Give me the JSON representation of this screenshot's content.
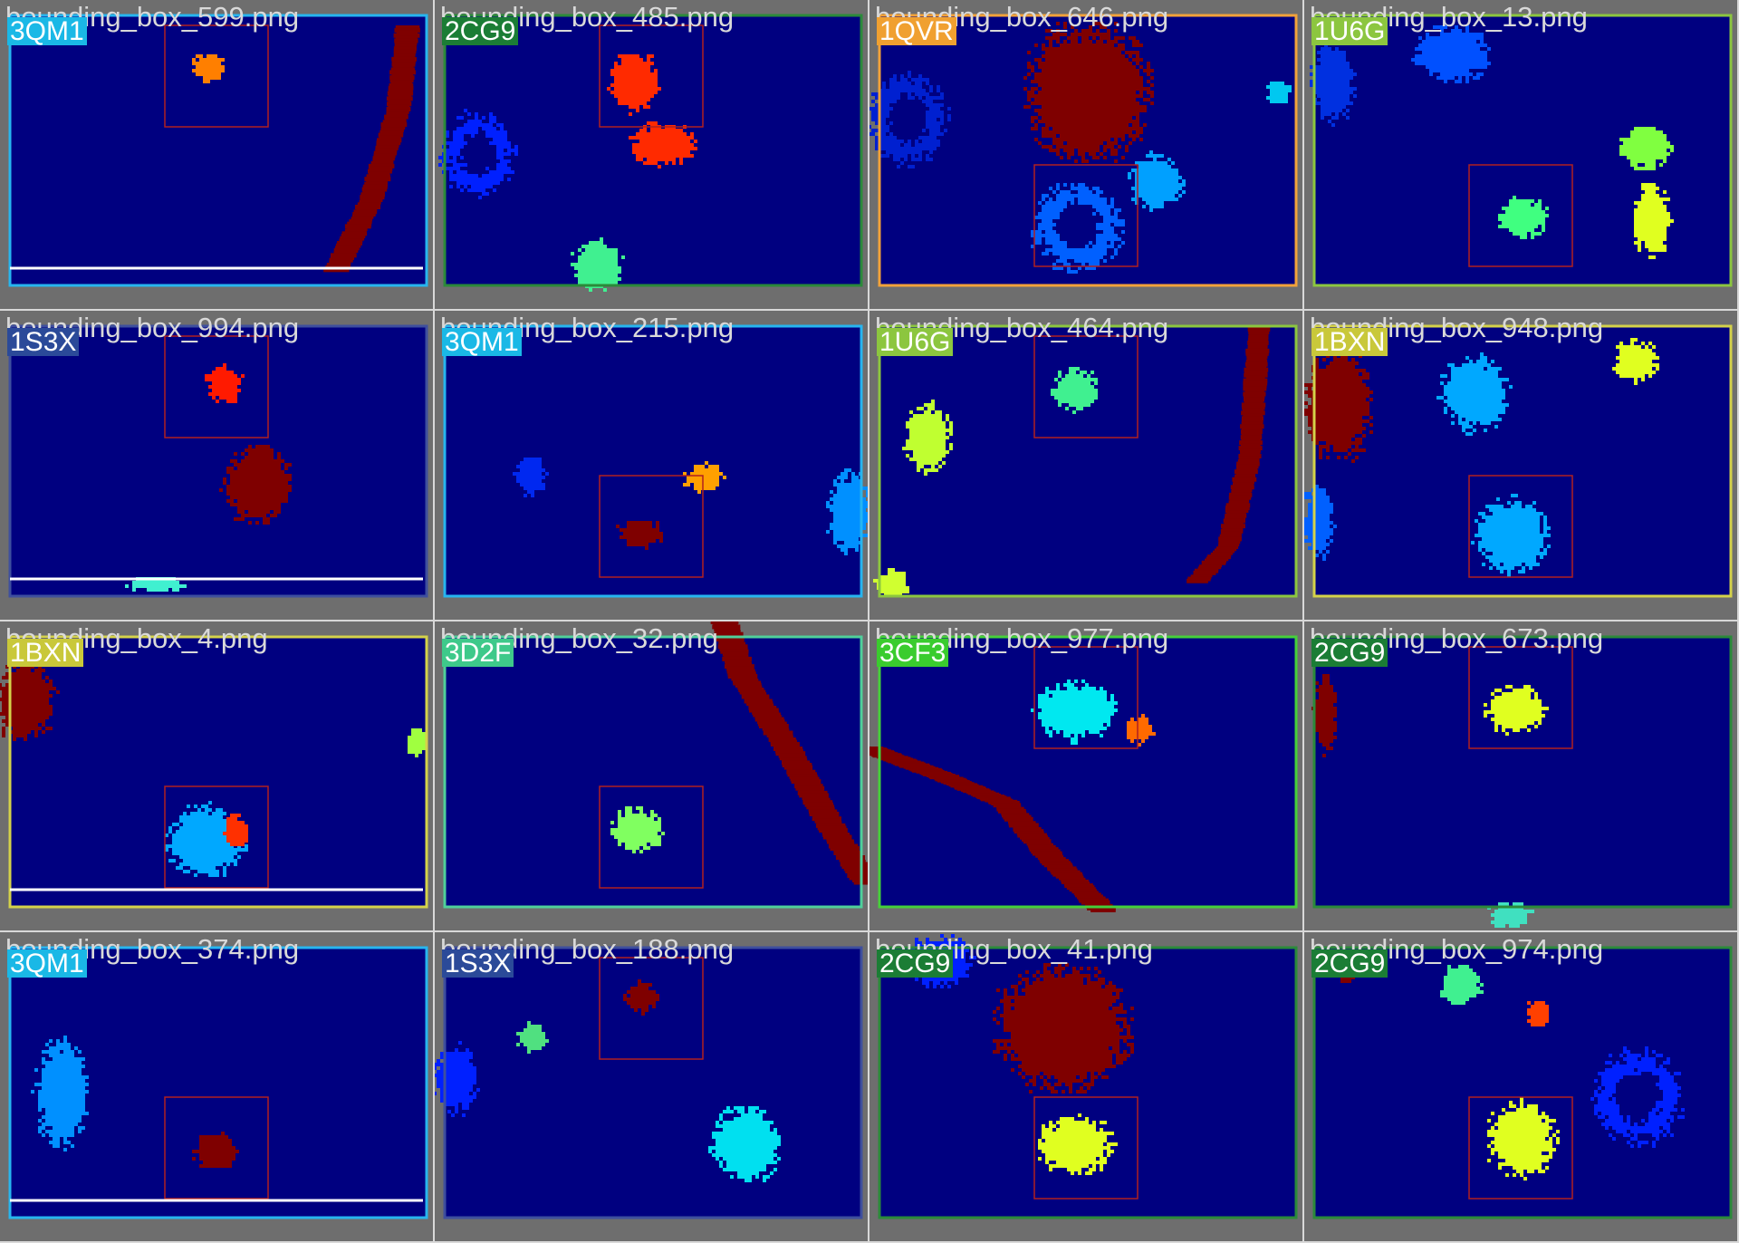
{
  "tiles": [
    {
      "file": "bounding_box_599.png",
      "tag": "3QM1",
      "tag_color": "#1ab8e6",
      "frame_color": "#27b5ef",
      "box_label": "3QM1",
      "bottom_line": "#ffffff"
    },
    {
      "file": "bounding_box_485.png",
      "tag": "2CG9",
      "tag_color": "#1b7d35",
      "frame_color": "#2b8a3a",
      "box_label": "2CG9"
    },
    {
      "file": "bounding_box_646.png",
      "tag": "1QVR",
      "tag_color": "#f0a030",
      "frame_color": "#f2a23a",
      "box_label": "1QVR"
    },
    {
      "file": "bounding_box_13.png",
      "tag": "1U6G",
      "tag_color": "#8cc63f",
      "frame_color": "#8cc63f",
      "box_label": "1U6G"
    },
    {
      "file": "bounding_box_994.png",
      "tag": "1S3X",
      "tag_color": "#2b4a99",
      "frame_color": "#3e4f9e",
      "box_label": "1S3X",
      "bottom_line": "#ffffff"
    },
    {
      "file": "bounding_box_215.png",
      "tag": "3QM1",
      "tag_color": "#1ab8e6",
      "frame_color": "#27b5ef",
      "box_label": "3QM1"
    },
    {
      "file": "bounding_box_464.png",
      "tag": "1U6G",
      "tag_color": "#8cc63f",
      "frame_color": "#8cc63f",
      "box_label": "1U6G"
    },
    {
      "file": "bounding_box_948.png",
      "tag": "1BXN",
      "tag_color": "#c9c83a",
      "frame_color": "#d4d24a",
      "box_label": "1BXN"
    },
    {
      "file": "bounding_box_4.png",
      "tag": "1BXN",
      "tag_color": "#c9c83a",
      "frame_color": "#d4d24a",
      "box_label": "1BXN",
      "bottom_line": "#ffffff"
    },
    {
      "file": "bounding_box_32.png",
      "tag": "3D2F",
      "tag_color": "#3ec98a",
      "frame_color": "#4fd09a",
      "box_label": "3D2F"
    },
    {
      "file": "bounding_box_977.png",
      "tag": "3CF3",
      "tag_color": "#3acc2e",
      "frame_color": "#45d03a",
      "box_label": "3CF3"
    },
    {
      "file": "bounding_box_673.png",
      "tag": "2CG9",
      "tag_color": "#1b7d35",
      "frame_color": "#2b8a3a",
      "box_label": "2CG9"
    },
    {
      "file": "bounding_box_374.png",
      "tag": "3QM1",
      "tag_color": "#1ab8e6",
      "frame_color": "#27b5ef",
      "box_label": "3QM1",
      "bottom_line": "#ffffff"
    },
    {
      "file": "bounding_box_188.png",
      "tag": "1S3X",
      "tag_color": "#2b4a99",
      "frame_color": "#3e4f9e",
      "box_label": "1S3X"
    },
    {
      "file": "bounding_box_41.png",
      "tag": "2CG9",
      "tag_color": "#1b7d35",
      "frame_color": "#2b8a3a",
      "box_label": "2CG9"
    },
    {
      "file": "bounding_box_974.png",
      "tag": "2CG9",
      "tag_color": "#1b7d35",
      "frame_color": "#2b8a3a",
      "box_label": "2CG9"
    }
  ],
  "colors": {
    "background": "#000080",
    "membrane": "#7f0000",
    "box_outline": "#b02020"
  }
}
